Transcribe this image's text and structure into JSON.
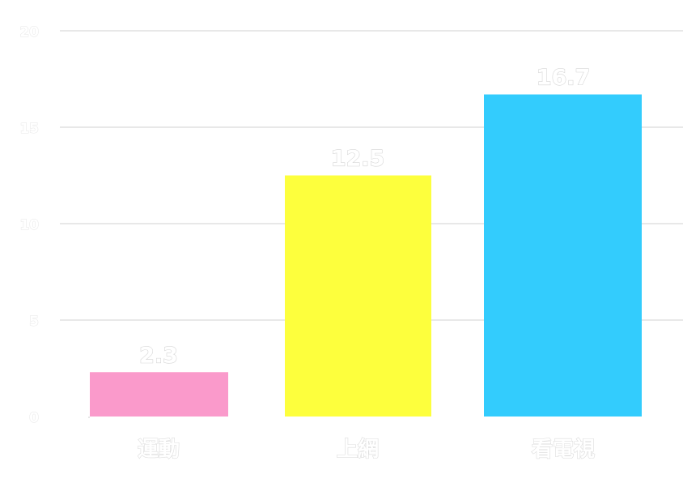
{
  "chart_data": {
    "type": "bar",
    "categories": [
      "運動",
      "上網",
      "看電視"
    ],
    "values": [
      2.3,
      12.5,
      16.7
    ],
    "colors": [
      "#fa9acb",
      "#fdff3d",
      "#33ccfd"
    ],
    "data_labels": [
      "2.3",
      "12.5",
      "16.7"
    ],
    "y_ticks": [
      "0",
      "5",
      "10",
      "15",
      "20"
    ],
    "ylim": [
      0,
      20
    ],
    "grid": true,
    "legend": "none"
  }
}
